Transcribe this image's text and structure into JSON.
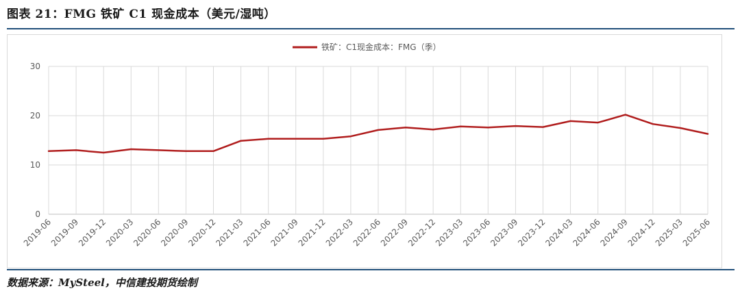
{
  "figure": {
    "title": "图表 21：FMG 铁矿 C1 现金成本（美元/湿吨）",
    "source": "数据来源：MySteel，中信建投期货绘制"
  },
  "colors": {
    "series": "#b01c1c",
    "rule": "#1f4e79",
    "grid": "#d9d9d9",
    "text": "#595959"
  },
  "chart_data": {
    "type": "line",
    "title": "",
    "xlabel": "",
    "ylabel": "",
    "ylim": [
      0,
      30
    ],
    "yticks": [
      0,
      10,
      20,
      30
    ],
    "grid": true,
    "legend_position": "top-center",
    "categories": [
      "2019-06",
      "2019-09",
      "2019-12",
      "2020-03",
      "2020-06",
      "2020-09",
      "2020-12",
      "2021-03",
      "2021-06",
      "2021-09",
      "2021-12",
      "2022-03",
      "2022-06",
      "2022-09",
      "2022-12",
      "2023-03",
      "2023-06",
      "2023-09",
      "2023-12",
      "2024-03",
      "2024-06",
      "2024-09",
      "2024-12",
      "2025-03",
      "2025-06"
    ],
    "series": [
      {
        "name": "铁矿：C1现金成本：FMG（季）",
        "values": [
          12.8,
          13.0,
          12.5,
          13.2,
          13.0,
          12.8,
          12.8,
          14.9,
          15.3,
          15.3,
          15.3,
          15.8,
          17.1,
          17.6,
          17.2,
          17.8,
          17.6,
          17.9,
          17.7,
          18.9,
          18.6,
          20.2,
          18.3,
          17.5,
          16.3
        ]
      }
    ]
  }
}
